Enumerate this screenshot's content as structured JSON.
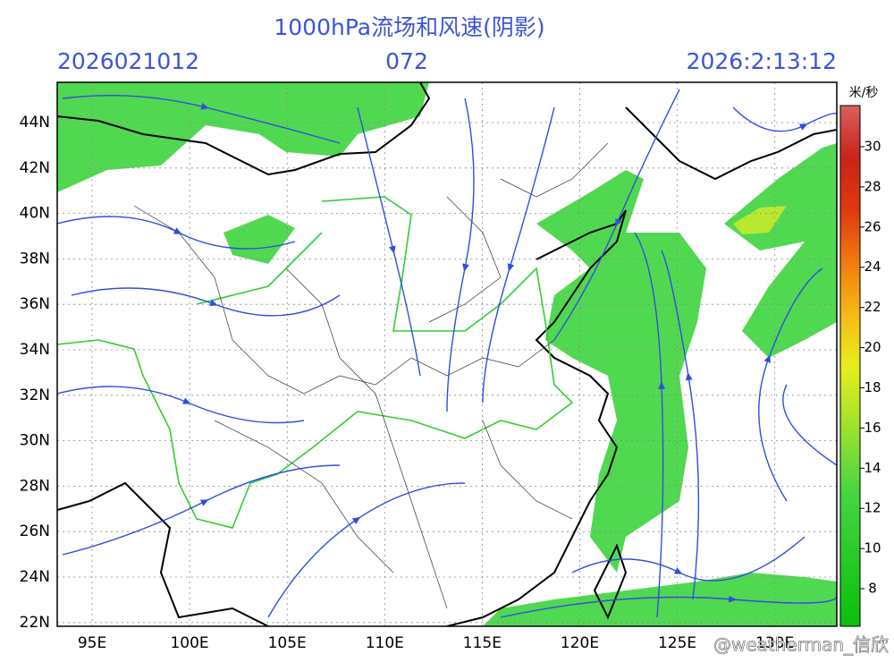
{
  "header": {
    "title": "1000hPa流场和风速(阴影)",
    "init_time": "2026021012",
    "forecast_hour": "072",
    "valid_time": "2026:2:13:12"
  },
  "map": {
    "lat_labels": [
      "44N",
      "42N",
      "40N",
      "38N",
      "36N",
      "34N",
      "32N",
      "30N",
      "28N",
      "26N",
      "24N",
      "22N"
    ],
    "lon_labels": [
      "95E",
      "100E",
      "105E",
      "110E",
      "115E",
      "120E",
      "125E",
      "130E"
    ]
  },
  "colorbar": {
    "unit": "米/秒",
    "ticks": [
      8,
      10,
      12,
      14,
      16,
      18,
      20,
      22,
      24,
      26,
      28,
      30
    ]
  },
  "watermark": "@weatherman_信欣"
}
